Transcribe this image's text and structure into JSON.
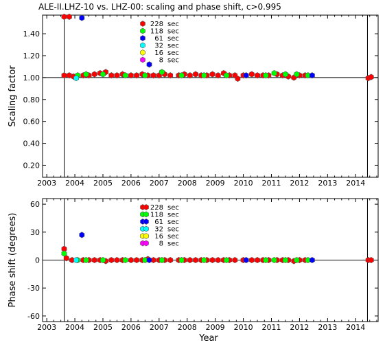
{
  "title": "ALE-II.LHZ-10 vs. LHZ-00: scaling and phase shift, c>0.995",
  "xlabel": "Year",
  "chart_data": [
    {
      "type": "scatter",
      "ylabel": "Scaling factor",
      "xlim": [
        2002.85,
        2014.8
      ],
      "ylim": [
        0.09,
        1.57
      ],
      "yticks": [
        0.2,
        0.4,
        0.6,
        0.8,
        1.0,
        1.2,
        1.4
      ],
      "ytick_labels": [
        "0.20",
        "0.40",
        "0.60",
        "0.80",
        "1.00",
        "1.20",
        "1.40"
      ],
      "xticks": [
        2003,
        2004,
        2005,
        2006,
        2007,
        2008,
        2009,
        2010,
        2011,
        2012,
        2013,
        2014
      ],
      "xtick_labels": [
        "2003",
        "2004",
        "2005",
        "2006",
        "2007",
        "2008",
        "2009",
        "2010",
        "2011",
        "2012",
        "2013",
        "2014"
      ],
      "reference_line": 1.0,
      "vlines": [
        2003.62,
        2014.42
      ],
      "legend": {
        "placement": "top-center",
        "entries": [
          {
            "name": "228",
            "unit": "sec",
            "color": "#ff0000"
          },
          {
            "name": "118",
            "unit": "sec",
            "color": "#00ff00"
          },
          {
            "name": "61",
            "unit": "sec",
            "color": "#0000ff"
          },
          {
            "name": "32",
            "unit": "sec",
            "color": "#00ffff"
          },
          {
            "name": "16",
            "unit": "sec",
            "color": "#ffff00"
          },
          {
            "name": "8",
            "unit": "sec",
            "color": "#ff00ff"
          }
        ]
      },
      "series": [
        {
          "name": "228",
          "color": "#ff0000",
          "points": [
            [
              2003.62,
              1.555
            ],
            [
              2003.8,
              1.555
            ],
            [
              2003.62,
              1.02
            ],
            [
              2003.8,
              1.02
            ],
            [
              2003.95,
              1.01
            ],
            [
              2004.3,
              1.02
            ],
            [
              2004.5,
              1.02
            ],
            [
              2004.7,
              1.03
            ],
            [
              2004.9,
              1.04
            ],
            [
              2005.1,
              1.05
            ],
            [
              2005.3,
              1.02
            ],
            [
              2005.5,
              1.02
            ],
            [
              2005.7,
              1.03
            ],
            [
              2006.0,
              1.02
            ],
            [
              2006.2,
              1.02
            ],
            [
              2006.4,
              1.03
            ],
            [
              2006.6,
              1.02
            ],
            [
              2006.8,
              1.02
            ],
            [
              2007.0,
              1.02
            ],
            [
              2007.2,
              1.03
            ],
            [
              2007.4,
              1.02
            ],
            [
              2007.7,
              1.02
            ],
            [
              2007.9,
              1.03
            ],
            [
              2008.1,
              1.02
            ],
            [
              2008.3,
              1.03
            ],
            [
              2008.5,
              1.02
            ],
            [
              2008.7,
              1.02
            ],
            [
              2008.9,
              1.03
            ],
            [
              2009.1,
              1.02
            ],
            [
              2009.3,
              1.04
            ],
            [
              2009.5,
              1.02
            ],
            [
              2009.7,
              1.02
            ],
            [
              2009.8,
              0.99
            ],
            [
              2010.0,
              1.02
            ],
            [
              2010.3,
              1.03
            ],
            [
              2010.5,
              1.02
            ],
            [
              2010.7,
              1.02
            ],
            [
              2010.9,
              1.02
            ],
            [
              2011.2,
              1.03
            ],
            [
              2011.4,
              1.02
            ],
            [
              2011.6,
              1.01
            ],
            [
              2011.8,
              1.0
            ],
            [
              2012.0,
              1.02
            ],
            [
              2012.2,
              1.02
            ],
            [
              2014.45,
              0.995
            ],
            [
              2014.55,
              1.005
            ]
          ]
        },
        {
          "name": "118",
          "color": "#00ff00",
          "points": [
            [
              2004.1,
              1.02
            ],
            [
              2004.4,
              1.03
            ],
            [
              2005.0,
              1.03
            ],
            [
              2005.8,
              1.02
            ],
            [
              2006.5,
              1.02
            ],
            [
              2007.1,
              1.05
            ],
            [
              2007.8,
              1.02
            ],
            [
              2008.6,
              1.02
            ],
            [
              2009.4,
              1.02
            ],
            [
              2010.8,
              1.02
            ],
            [
              2011.1,
              1.04
            ],
            [
              2011.5,
              1.03
            ],
            [
              2011.9,
              1.03
            ],
            [
              2012.3,
              1.02
            ]
          ]
        },
        {
          "name": "61",
          "color": "#0000ff",
          "points": [
            [
              2004.25,
              1.545
            ],
            [
              2006.65,
              1.12
            ],
            [
              2010.1,
              1.02
            ],
            [
              2012.45,
              1.02
            ]
          ]
        },
        {
          "name": "32",
          "color": "#00ffff",
          "points": [
            [
              2004.05,
              0.995
            ]
          ]
        },
        {
          "name": "16",
          "color": "#ffff00",
          "points": []
        },
        {
          "name": "8",
          "color": "#ff00ff",
          "points": []
        }
      ]
    },
    {
      "type": "scatter",
      "ylabel": "Phase shift (degrees)",
      "xlim": [
        2002.85,
        2014.8
      ],
      "ylim": [
        -66,
        66
      ],
      "yticks": [
        -60,
        -30,
        0,
        30,
        60
      ],
      "ytick_labels": [
        "-60",
        "-30",
        "0",
        "30",
        "60"
      ],
      "xticks": [
        2003,
        2004,
        2005,
        2006,
        2007,
        2008,
        2009,
        2010,
        2011,
        2012,
        2013,
        2014
      ],
      "xtick_labels": [
        "2003",
        "2004",
        "2005",
        "2006",
        "2007",
        "2008",
        "2009",
        "2010",
        "2011",
        "2012",
        "2013",
        "2014"
      ],
      "reference_line": 0,
      "vlines": [
        2003.62,
        2014.42
      ],
      "legend": {
        "placement": "top-center",
        "entries": [
          {
            "name": "228",
            "unit": "sec",
            "color": "#ff0000"
          },
          {
            "name": "118",
            "unit": "sec",
            "color": "#00ff00"
          },
          {
            "name": "61",
            "unit": "sec",
            "color": "#0000ff"
          },
          {
            "name": "32",
            "unit": "sec",
            "color": "#00ffff"
          },
          {
            "name": "16",
            "unit": "sec",
            "color": "#ffff00"
          },
          {
            "name": "8",
            "unit": "sec",
            "color": "#ff00ff"
          }
        ]
      },
      "series": [
        {
          "name": "228",
          "color": "#ff0000",
          "points": [
            [
              2003.62,
              12
            ],
            [
              2003.7,
              2
            ],
            [
              2003.9,
              0
            ],
            [
              2004.3,
              0
            ],
            [
              2004.5,
              0
            ],
            [
              2004.7,
              0
            ],
            [
              2004.9,
              0
            ],
            [
              2005.1,
              -1
            ],
            [
              2005.3,
              0
            ],
            [
              2005.5,
              0
            ],
            [
              2005.7,
              0
            ],
            [
              2006.0,
              0
            ],
            [
              2006.2,
              0
            ],
            [
              2006.4,
              0
            ],
            [
              2006.6,
              1
            ],
            [
              2006.8,
              0
            ],
            [
              2007.0,
              0
            ],
            [
              2007.2,
              0
            ],
            [
              2007.4,
              0
            ],
            [
              2007.7,
              0
            ],
            [
              2007.9,
              0
            ],
            [
              2008.1,
              0
            ],
            [
              2008.3,
              0
            ],
            [
              2008.5,
              0
            ],
            [
              2008.7,
              0
            ],
            [
              2008.9,
              0
            ],
            [
              2009.1,
              0
            ],
            [
              2009.3,
              0
            ],
            [
              2009.5,
              0
            ],
            [
              2009.7,
              0
            ],
            [
              2010.0,
              0
            ],
            [
              2010.3,
              0
            ],
            [
              2010.5,
              0
            ],
            [
              2010.7,
              0
            ],
            [
              2010.9,
              0
            ],
            [
              2011.2,
              0
            ],
            [
              2011.4,
              0
            ],
            [
              2011.6,
              0
            ],
            [
              2011.8,
              -1
            ],
            [
              2012.0,
              0
            ],
            [
              2012.2,
              0
            ],
            [
              2014.45,
              0
            ],
            [
              2014.55,
              0
            ]
          ]
        },
        {
          "name": "118",
          "color": "#00ff00",
          "points": [
            [
              2003.62,
              7
            ],
            [
              2004.1,
              0
            ],
            [
              2004.4,
              0
            ],
            [
              2005.0,
              0
            ],
            [
              2005.8,
              0
            ],
            [
              2006.5,
              0
            ],
            [
              2007.1,
              0
            ],
            [
              2007.8,
              0
            ],
            [
              2008.6,
              0
            ],
            [
              2009.4,
              0
            ],
            [
              2010.8,
              0
            ],
            [
              2011.1,
              0
            ],
            [
              2011.5,
              0
            ],
            [
              2011.9,
              0
            ],
            [
              2012.3,
              0
            ]
          ]
        },
        {
          "name": "61",
          "color": "#0000ff",
          "points": [
            [
              2004.25,
              27
            ],
            [
              2006.65,
              0
            ],
            [
              2010.1,
              0
            ],
            [
              2012.45,
              0
            ]
          ]
        },
        {
          "name": "32",
          "color": "#00ffff",
          "points": [
            [
              2004.05,
              0
            ]
          ]
        },
        {
          "name": "16",
          "color": "#ffff00",
          "points": []
        },
        {
          "name": "8",
          "color": "#ff00ff",
          "points": []
        }
      ]
    }
  ]
}
